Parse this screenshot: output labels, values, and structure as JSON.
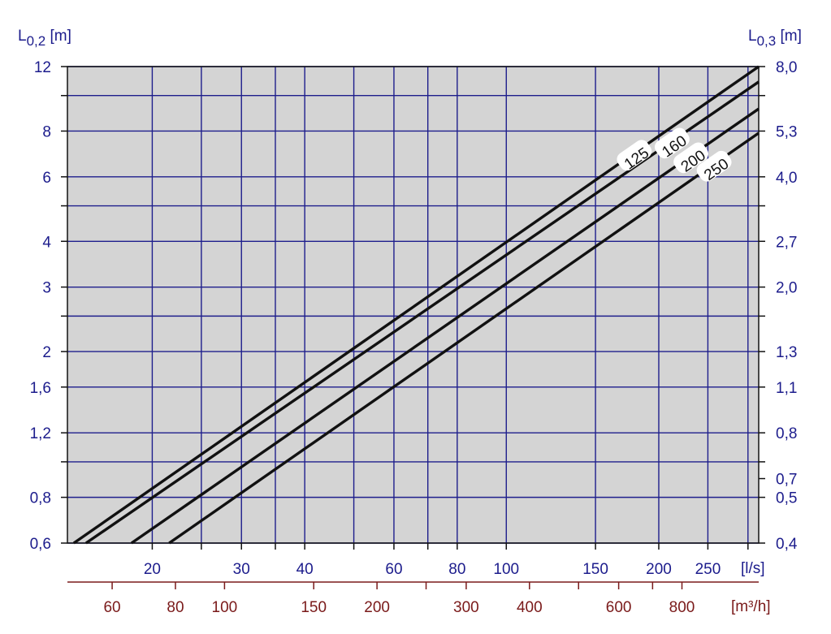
{
  "chart_data": {
    "type": "line",
    "scale": "log-log",
    "grid": true,
    "left_axis": {
      "symbol": "L",
      "subscript": "0,2",
      "unit": " [m]",
      "range": [
        0.6,
        12
      ],
      "ticks": [
        {
          "value": 0.6,
          "label": "0,6"
        },
        {
          "value": 0.8,
          "label": "0,8"
        },
        {
          "value": 1.2,
          "label": "1,2"
        },
        {
          "value": 1.6,
          "label": "1,6"
        },
        {
          "value": 2,
          "label": "2"
        },
        {
          "value": 3,
          "label": "3"
        },
        {
          "value": 4,
          "label": "4"
        },
        {
          "value": 6,
          "label": "6"
        },
        {
          "value": 8,
          "label": "8"
        },
        {
          "value": 12,
          "label": "12"
        }
      ],
      "unlabeled_gridlines": [
        1.0,
        2.5,
        5,
        10
      ]
    },
    "right_axis": {
      "symbol": "L",
      "subscript": "0,3",
      "unit": " [m]",
      "ticks": [
        {
          "value": 0.6,
          "label": "0,4"
        },
        {
          "value": 0.8,
          "label": "0,5"
        },
        {
          "value": 0.9,
          "label": "0,7"
        },
        {
          "value": 1.2,
          "label": "0,8"
        },
        {
          "value": 1.6,
          "label": "1,1"
        },
        {
          "value": 2,
          "label": "1,3"
        },
        {
          "value": 3,
          "label": "2,0"
        },
        {
          "value": 4,
          "label": "2,7"
        },
        {
          "value": 6,
          "label": "4,0"
        },
        {
          "value": 8,
          "label": "5,3"
        },
        {
          "value": 12,
          "label": "8,0"
        }
      ]
    },
    "x_axis": {
      "unit": "[l/s]",
      "range": [
        13.6,
        315
      ],
      "ticks": [
        {
          "value": 20,
          "label": "20"
        },
        {
          "value": 30,
          "label": "30"
        },
        {
          "value": 40,
          "label": "40"
        },
        {
          "value": 60,
          "label": "60"
        },
        {
          "value": 80,
          "label": "80"
        },
        {
          "value": 100,
          "label": "100"
        },
        {
          "value": 150,
          "label": "150"
        },
        {
          "value": 200,
          "label": "200"
        },
        {
          "value": 250,
          "label": "250"
        }
      ],
      "unlabeled_gridlines": [
        25,
        35,
        50,
        70,
        300
      ]
    },
    "x2_axis": {
      "unit": "[m³/h]",
      "ticks": [
        {
          "value": 60,
          "label": "60"
        },
        {
          "value": 80,
          "label": "80"
        },
        {
          "value": 100,
          "label": "100"
        },
        {
          "value": 150,
          "label": "150"
        },
        {
          "value": 200,
          "label": "200"
        },
        {
          "value": 300,
          "label": "300"
        },
        {
          "value": 400,
          "label": "400"
        },
        {
          "value": 600,
          "label": "600"
        },
        {
          "value": 800,
          "label": "800"
        }
      ],
      "unlabeled_ticks": [
        250,
        500,
        700
      ]
    },
    "series": [
      {
        "name": "125",
        "x": [
          14.0,
          315
        ],
        "y": [
          0.6,
          12.0
        ]
      },
      {
        "name": "160",
        "x": [
          14.8,
          315
        ],
        "y": [
          0.6,
          10.9
        ]
      },
      {
        "name": "200",
        "x": [
          18.2,
          315
        ],
        "y": [
          0.6,
          9.2
        ]
      },
      {
        "name": "250",
        "x": [
          21.6,
          315
        ],
        "y": [
          0.6,
          7.9
        ]
      }
    ]
  }
}
